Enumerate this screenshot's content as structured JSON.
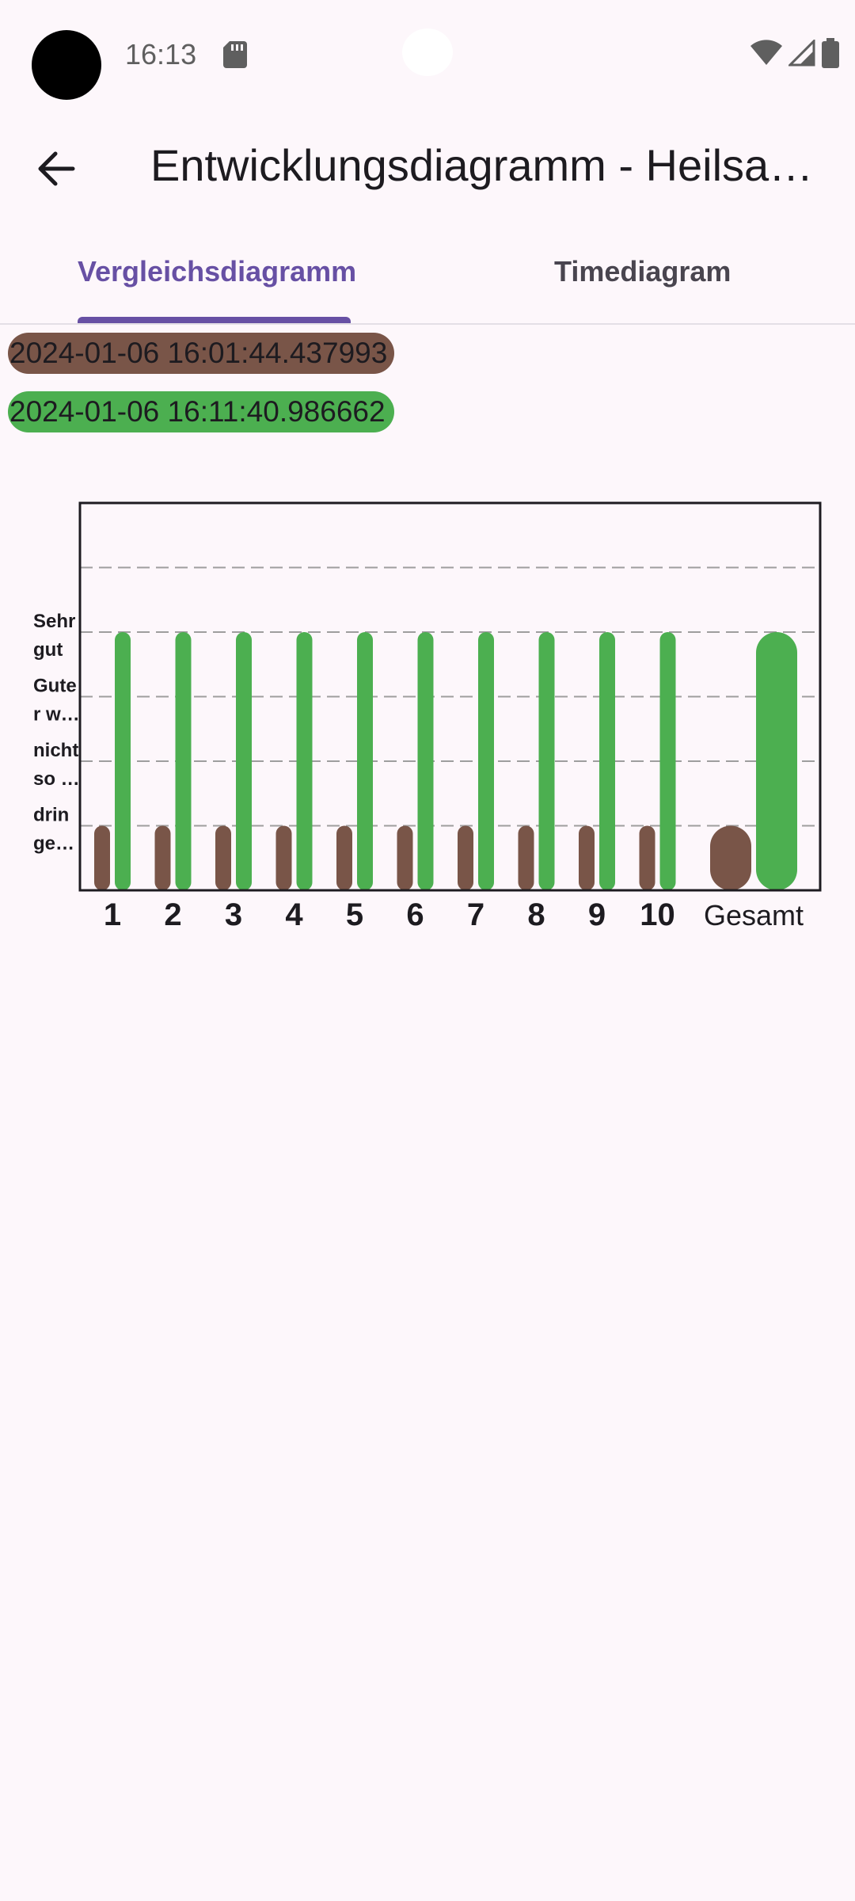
{
  "status_bar": {
    "time": "16:13"
  },
  "app_bar": {
    "title": "Entwicklungsdiagramm - Heilsa…"
  },
  "tabs": [
    {
      "label": "Vergleichsdiagramm",
      "active": true
    },
    {
      "label": "Timediagram",
      "active": false
    }
  ],
  "legend": [
    {
      "label": "2024-01-06 16:01:44.437993",
      "color": "#795548"
    },
    {
      "label": "2024-01-06 16:11:40.986662",
      "color": "#4CAF50"
    }
  ],
  "chart_data": {
    "type": "bar",
    "categories": [
      "1",
      "2",
      "3",
      "4",
      "5",
      "6",
      "7",
      "8",
      "9",
      "10",
      "Gesamt"
    ],
    "series": [
      {
        "name": "2024-01-06 16:01:44.437993",
        "color": "#795548",
        "values": [
          1,
          1,
          1,
          1,
          1,
          1,
          1,
          1,
          1,
          1,
          1
        ]
      },
      {
        "name": "2024-01-06 16:11:40.986662",
        "color": "#4CAF50",
        "values": [
          4,
          4,
          4,
          4,
          4,
          4,
          4,
          4,
          4,
          4,
          4
        ]
      }
    ],
    "ylim": [
      0,
      6
    ],
    "y_tick_labels": [
      {
        "value": 1,
        "lines": [
          "drin",
          "ge…"
        ]
      },
      {
        "value": 2,
        "lines": [
          "nicht",
          "so …"
        ]
      },
      {
        "value": 3,
        "lines": [
          "Gute",
          "r w…"
        ]
      },
      {
        "value": 4,
        "lines": [
          "Sehr",
          "gut"
        ]
      }
    ],
    "grid": true,
    "xlabel": "",
    "ylabel": "",
    "title": ""
  }
}
